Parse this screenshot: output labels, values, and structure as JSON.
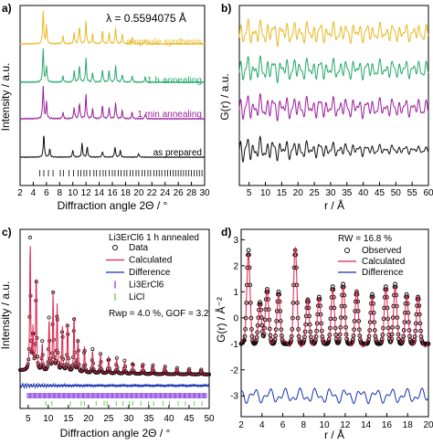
{
  "colors": {
    "yellow": "#e8b923",
    "green": "#25a86b",
    "purple": "#9b1d9b",
    "black": "#111111",
    "red": "#e0204a",
    "blue": "#1a2fb0",
    "violet": "#7a2ee0",
    "lime": "#59c43a"
  },
  "chart_data": [
    {
      "panel": "a)",
      "type": "line",
      "xlabel": "Diffraction angle 2Θ / °",
      "ylabel": "Intensity / a.u.",
      "xlim": [
        2,
        30
      ],
      "xticks": [
        2,
        4,
        6,
        8,
        10,
        12,
        14,
        16,
        18,
        20,
        22,
        24,
        26,
        28,
        30
      ],
      "annotation": "λ = 0.5594075 Å",
      "series": [
        {
          "name": "ampoule synthesis",
          "color": "yellow",
          "peaks": [
            [
              5.5,
              1.0
            ],
            [
              6.0,
              0.55
            ],
            [
              8.5,
              0.25
            ],
            [
              10.2,
              0.35
            ],
            [
              11.0,
              0.55
            ],
            [
              12.0,
              0.7
            ],
            [
              13.0,
              0.3
            ],
            [
              14.5,
              0.4
            ],
            [
              15.5,
              0.35
            ],
            [
              16.5,
              0.5
            ],
            [
              17.5,
              0.3
            ],
            [
              19.0,
              0.2
            ],
            [
              21.0,
              0.15
            ]
          ]
        },
        {
          "name": "1 h annealing",
          "color": "green",
          "peaks": [
            [
              5.5,
              1.0
            ],
            [
              6.0,
              0.5
            ],
            [
              8.5,
              0.2
            ],
            [
              10.2,
              0.35
            ],
            [
              11.0,
              0.5
            ],
            [
              12.0,
              0.75
            ],
            [
              13.0,
              0.3
            ],
            [
              14.5,
              0.4
            ],
            [
              15.5,
              0.35
            ],
            [
              16.5,
              0.5
            ],
            [
              17.5,
              0.25
            ],
            [
              19.0,
              0.2
            ],
            [
              21.0,
              0.15
            ]
          ]
        },
        {
          "name": "1 min annealing",
          "color": "purple",
          "peaks": [
            [
              5.5,
              1.0
            ],
            [
              6.0,
              0.5
            ],
            [
              8.5,
              0.2
            ],
            [
              10.2,
              0.35
            ],
            [
              11.0,
              0.5
            ],
            [
              12.0,
              0.75
            ],
            [
              13.0,
              0.3
            ],
            [
              14.5,
              0.4
            ],
            [
              15.5,
              0.35
            ],
            [
              16.5,
              0.5
            ],
            [
              17.5,
              0.25
            ],
            [
              19.0,
              0.2
            ],
            [
              21.0,
              0.15
            ]
          ]
        },
        {
          "name": "as prepared",
          "color": "black",
          "peaks": [
            [
              5.6,
              1.0
            ],
            [
              6.5,
              0.35
            ],
            [
              10.0,
              0.3
            ],
            [
              11.4,
              0.6
            ],
            [
              12.2,
              0.45
            ],
            [
              14.5,
              0.25
            ],
            [
              16.4,
              0.45
            ],
            [
              17.2,
              0.3
            ],
            [
              20.0,
              0.15
            ]
          ]
        }
      ],
      "reference_ticks": [
        5.0,
        5.6,
        6.3,
        7.0,
        8.1,
        8.6,
        9.4,
        10.1,
        10.8,
        11.2,
        11.7,
        12.1,
        12.6,
        13.2,
        13.6,
        14.1,
        14.6,
        15.0,
        15.5,
        16.0,
        16.4,
        16.9,
        17.3,
        17.8,
        18.2,
        18.7,
        19.1,
        19.6,
        20.0,
        20.5,
        20.9,
        21.4,
        21.8,
        22.3,
        22.7,
        23.1,
        23.5,
        24.0,
        24.4,
        24.8,
        25.2,
        25.6,
        26.0,
        26.4,
        26.8,
        27.2,
        27.6,
        28.0,
        28.4,
        28.8,
        29.2,
        29.6
      ]
    },
    {
      "panel": "b)",
      "type": "line",
      "xlabel": "r / Å",
      "ylabel": "G(r) / a.u.",
      "xlim": [
        2,
        60
      ],
      "xticks": [
        5,
        10,
        15,
        20,
        25,
        30,
        35,
        40,
        45,
        50,
        55,
        60
      ],
      "series": [
        {
          "color": "yellow"
        },
        {
          "color": "green"
        },
        {
          "color": "purple"
        },
        {
          "color": "black"
        }
      ]
    },
    {
      "panel": "c)",
      "type": "line",
      "xlabel": "Diffraction angle 2Θ / °",
      "ylabel": "Intensity / a.u.",
      "xlim": [
        3,
        50
      ],
      "xticks": [
        5,
        10,
        15,
        20,
        25,
        30,
        35,
        40,
        45,
        50
      ],
      "title": "Li3ErCl6 1 h annealed",
      "legend": [
        {
          "label": "Data",
          "color": "black",
          "kind": "circle"
        },
        {
          "label": "Calculated",
          "color": "red",
          "kind": "line"
        },
        {
          "label": "Difference",
          "color": "blue",
          "kind": "line"
        },
        {
          "label": "Li3ErCl6",
          "color": "violet",
          "kind": "tick"
        },
        {
          "label": "LiCl",
          "color": "lime",
          "kind": "tick"
        }
      ],
      "annotation": "Rwp = 4.0 %, GOF = 3.2",
      "peaks": [
        [
          5.5,
          1.0
        ],
        [
          6.2,
          0.3
        ],
        [
          7.0,
          0.75
        ],
        [
          8.5,
          0.22
        ],
        [
          10.2,
          0.4
        ],
        [
          11.2,
          0.6
        ],
        [
          12.2,
          0.5
        ],
        [
          13.5,
          0.35
        ],
        [
          14.8,
          0.4
        ],
        [
          16.4,
          0.45
        ],
        [
          17.4,
          0.25
        ],
        [
          19.0,
          0.2
        ],
        [
          21.0,
          0.18
        ],
        [
          23.0,
          0.15
        ],
        [
          25.0,
          0.13
        ],
        [
          27.0,
          0.12
        ],
        [
          29.0,
          0.1
        ],
        [
          31.0,
          0.09
        ],
        [
          33.5,
          0.08
        ],
        [
          36.0,
          0.07
        ],
        [
          39.0,
          0.06
        ],
        [
          42.0,
          0.05
        ],
        [
          45.0,
          0.045
        ],
        [
          48.0,
          0.04
        ]
      ],
      "licl_ticks": [
        9.4,
        10.9,
        15.5,
        18.2,
        19.0,
        21.9,
        23.9,
        24.6,
        26.9,
        28.6,
        30.2,
        31.0,
        33.0,
        34.9,
        36.2,
        38.5,
        40.1,
        42.3,
        44.1,
        46.3,
        48.2
      ]
    },
    {
      "panel": "d)",
      "type": "line",
      "xlabel": "r / Å",
      "ylabel": "G(r) / Å⁻²",
      "xlim": [
        2,
        20
      ],
      "ylim": [
        -3.8,
        3.4
      ],
      "xticks": [
        2,
        4,
        6,
        8,
        10,
        12,
        14,
        16,
        18,
        20
      ],
      "yticks": [
        -3,
        -2,
        -1,
        0,
        1,
        2,
        3
      ],
      "annotation": "RW = 16.8 %",
      "legend": [
        {
          "label": "Observed",
          "color": "black",
          "kind": "circle"
        },
        {
          "label": "Calculated",
          "color": "red",
          "kind": "line"
        },
        {
          "label": "Difference",
          "color": "blue",
          "kind": "line"
        }
      ],
      "peaks": [
        [
          2.7,
          2.6
        ],
        [
          3.8,
          0.6
        ],
        [
          4.5,
          1.1
        ],
        [
          5.6,
          1.0
        ],
        [
          7.2,
          2.6
        ],
        [
          8.4,
          0.7
        ],
        [
          9.5,
          0.8
        ],
        [
          10.8,
          1.2
        ],
        [
          11.8,
          1.3
        ],
        [
          13.1,
          1.0
        ],
        [
          14.6,
          0.9
        ],
        [
          15.9,
          1.2
        ],
        [
          16.8,
          1.3
        ],
        [
          17.9,
          0.9
        ],
        [
          19.0,
          0.8
        ]
      ]
    }
  ]
}
